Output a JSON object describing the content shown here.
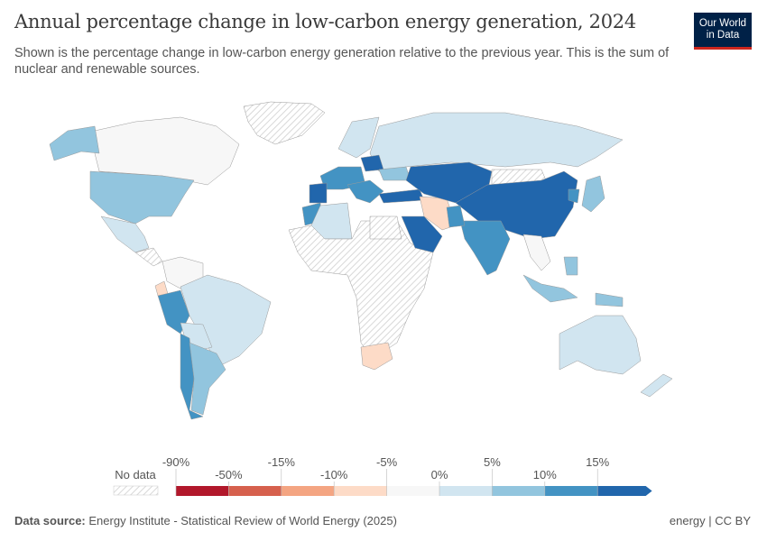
{
  "header": {
    "title": "Annual percentage change in low-carbon energy generation, 2024",
    "subtitle": "Shown is the percentage change in low-carbon energy generation relative to the previous year. This is the sum of nuclear and renewable sources.",
    "logo": "Our World in Data"
  },
  "legend": {
    "no_data_label": "No data",
    "bins": [
      {
        "from": "-90%",
        "to": "-50%",
        "color": "#b2182b"
      },
      {
        "from": "-50%",
        "to": "-15%",
        "color": "#d6604d"
      },
      {
        "from": "-15%",
        "to": "-10%",
        "color": "#f4a582"
      },
      {
        "from": "-10%",
        "to": "-5%",
        "color": "#fddbc7"
      },
      {
        "from": "-5%",
        "to": "0%",
        "color": "#f7f7f7"
      },
      {
        "from": "0%",
        "to": "5%",
        "color": "#d1e5f0"
      },
      {
        "from": "5%",
        "to": "10%",
        "color": "#92c5de"
      },
      {
        "from": "10%",
        "to": "15%",
        "color": "#4393c3"
      },
      {
        "from": "15%",
        "to": "",
        "color": "#2166ac"
      }
    ],
    "ticks": [
      "-90%",
      "-50%",
      "-15%",
      "-10%",
      "-5%",
      "0%",
      "5%",
      "10%",
      "15%"
    ]
  },
  "footer": {
    "source_label": "Data source:",
    "source": "Energy Institute - Statistical Review of World Energy (2025)",
    "right": "energy | CC BY"
  },
  "colors": {
    "nodata_hatch": "#dcdcdc",
    "border": "#999999"
  }
}
